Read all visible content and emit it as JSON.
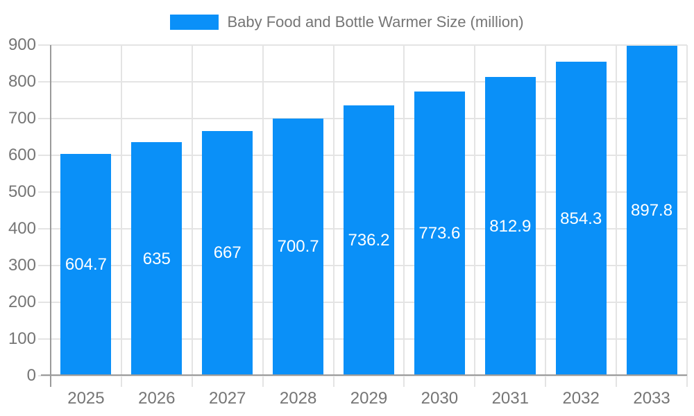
{
  "colors": {
    "bar": "#0a90f8",
    "grid": "#e4e4e4",
    "axis": "#9a9a9a",
    "tick_text": "#757575",
    "value_text": "#ffffff",
    "background": "#ffffff"
  },
  "legend": {
    "position": "top",
    "swatch_color": "#0a90f8"
  },
  "chart_data": {
    "type": "bar",
    "title": "Baby Food and Bottle Warmer Size (million)",
    "categories": [
      "2025",
      "2026",
      "2027",
      "2028",
      "2029",
      "2030",
      "2031",
      "2032",
      "2033"
    ],
    "values": [
      604.7,
      635,
      667,
      700.7,
      736.2,
      773.6,
      812.9,
      854.3,
      897.8
    ],
    "value_labels": [
      "604.7",
      "635",
      "667",
      "700.7",
      "736.2",
      "773.6",
      "812.9",
      "854.3",
      "897.8"
    ],
    "xlabel": "",
    "ylabel": "",
    "ylim": [
      0,
      900
    ],
    "yticks": [
      0,
      100,
      200,
      300,
      400,
      500,
      600,
      700,
      800,
      900
    ],
    "grid": true,
    "legend_position": "top",
    "bar_color": "#0a90f8"
  }
}
